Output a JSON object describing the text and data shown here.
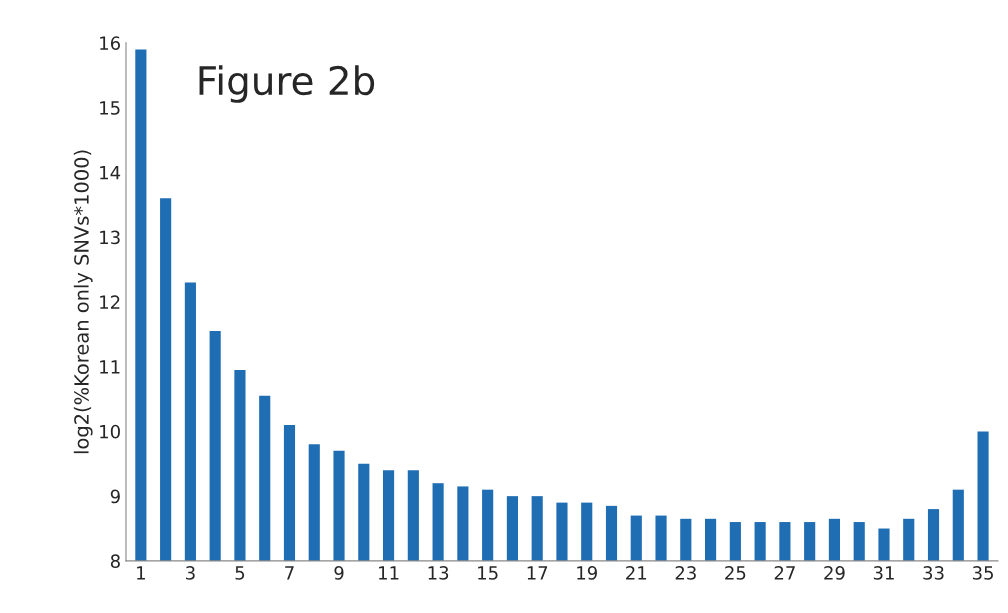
{
  "chart_data": {
    "type": "bar",
    "title": "Figure 2b",
    "ylabel": "log2(%Korean only SNVs*1000)",
    "categories": [
      "1",
      null,
      "3",
      null,
      "5",
      null,
      "7",
      null,
      "9",
      null,
      "11",
      null,
      "13",
      null,
      "15",
      null,
      "17",
      null,
      "19",
      null,
      "21",
      null,
      "23",
      null,
      "25",
      null,
      "27",
      null,
      "29",
      null,
      "31",
      null,
      "33",
      null,
      "35"
    ],
    "values": [
      15.9,
      13.6,
      12.3,
      11.55,
      10.95,
      10.55,
      10.1,
      9.8,
      9.7,
      9.5,
      9.4,
      9.4,
      9.2,
      9.15,
      9.1,
      9.0,
      9.0,
      8.9,
      8.9,
      8.85,
      8.7,
      8.7,
      8.65,
      8.65,
      8.6,
      8.6,
      8.6,
      8.6,
      8.65,
      8.6,
      8.5,
      8.65,
      8.8,
      9.1,
      10.0
    ],
    "color": "#1f6db3",
    "ylim": [
      8,
      16
    ],
    "yticks": [
      8,
      9,
      10,
      11,
      12,
      13,
      14,
      15,
      16
    ],
    "grid": false
  }
}
